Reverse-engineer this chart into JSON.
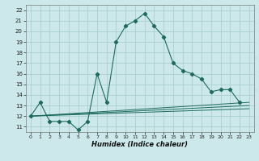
{
  "xlabel": "Humidex (Indice chaleur)",
  "bg_color": "#cce8ea",
  "grid_color": "#aacfd2",
  "line_color": "#1e6b5e",
  "xlim": [
    -0.5,
    23.5
  ],
  "ylim": [
    10.5,
    22.5
  ],
  "xticks": [
    0,
    1,
    2,
    3,
    4,
    5,
    6,
    7,
    8,
    9,
    10,
    11,
    12,
    13,
    14,
    15,
    16,
    17,
    18,
    19,
    20,
    21,
    22,
    23
  ],
  "yticks": [
    11,
    12,
    13,
    14,
    15,
    16,
    17,
    18,
    19,
    20,
    21,
    22
  ],
  "series0_x": [
    0,
    1,
    2,
    3,
    4,
    5,
    6,
    7,
    8,
    9,
    10,
    11,
    12,
    13,
    14,
    15,
    16,
    17,
    18,
    19,
    20,
    21,
    22
  ],
  "series0_y": [
    12.0,
    13.3,
    11.5,
    11.5,
    11.5,
    10.7,
    11.5,
    16.0,
    13.3,
    19.0,
    20.5,
    21.0,
    21.7,
    20.5,
    19.5,
    17.0,
    16.3,
    16.0,
    15.5,
    14.3,
    14.5,
    14.5,
    13.3
  ],
  "flat_lines": [
    {
      "x": [
        0,
        23
      ],
      "y": [
        12.0,
        13.3
      ]
    },
    {
      "x": [
        0,
        23
      ],
      "y": [
        12.0,
        13.0
      ]
    },
    {
      "x": [
        0,
        23
      ],
      "y": [
        12.0,
        12.7
      ]
    }
  ]
}
